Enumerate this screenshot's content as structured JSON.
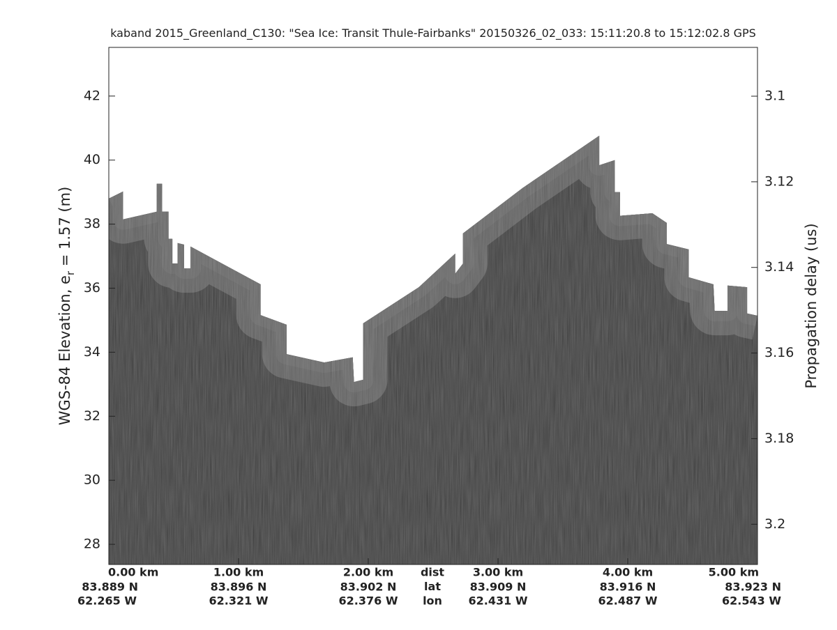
{
  "chart_data": {
    "type": "area",
    "title": "kaband 2015_Greenland_C130: \"Sea Ice: Transit Thule-Fairbanks\"  20150326_02_033: 15:11:20.8 to 15:12:02.8 GPS",
    "y_label": "WGS-84 Elevation, e",
    "y_label_sub": "r",
    "y_label_rest": " = 1.57 (m)",
    "y2_label": "Propagation delay (us)",
    "xlim": [
      0,
      5
    ],
    "ylim": [
      27.37,
      43.52
    ],
    "yticks": [
      28,
      30,
      32,
      34,
      36,
      38,
      40,
      42
    ],
    "y2lim": [
      3.0886,
      3.2094
    ],
    "y2ticks": [
      3.1,
      3.12,
      3.14,
      3.16,
      3.18,
      3.2
    ],
    "xticks": [
      {
        "value": 0,
        "label": "0.00 km"
      },
      {
        "value": 1,
        "label": "1.00 km"
      },
      {
        "value": 2,
        "label": "2.00 km"
      },
      {
        "value": 3,
        "label": "3.00 km"
      },
      {
        "value": 4,
        "label": "4.00 km"
      },
      {
        "value": 5,
        "label": "5.00 km"
      }
    ],
    "lat_labels": [
      "83.889 N",
      "83.896 N",
      "83.902 N",
      "83.909 N",
      "83.916 N",
      "83.923 N"
    ],
    "lon_labels": [
      "62.265 W",
      "62.321 W",
      "62.376 W",
      "62.431 W",
      "62.487 W",
      "62.543 W"
    ],
    "row_labels": [
      "dist",
      "lat",
      "lon"
    ],
    "series": [
      {
        "color": "#3e3e3e",
        "x": [
          0,
          0.11,
          0.11,
          0.37,
          0.37,
          0.41,
          0.41,
          0.46,
          0.46,
          0.49,
          0.49,
          0.53,
          0.53,
          0.58,
          0.58,
          0.63,
          0.63,
          1.17,
          1.17,
          1.37,
          1.37,
          1.66,
          1.88,
          1.89,
          1.96,
          1.96,
          2.39,
          2.67,
          2.67,
          2.73,
          2.73,
          3.19,
          3.78,
          3.78,
          3.9,
          3.9,
          3.94,
          3.94,
          4.19,
          4.3,
          4.3,
          4.47,
          4.47,
          4.66,
          4.67,
          4.77,
          4.77,
          4.92,
          4.92,
          5.0
        ],
        "values": [
          38.8,
          39.02,
          38.15,
          38.39,
          39.26,
          39.26,
          38.39,
          38.39,
          37.54,
          37.54,
          36.77,
          36.77,
          37.41,
          37.36,
          36.62,
          36.62,
          37.3,
          36.12,
          35.16,
          34.86,
          33.94,
          33.68,
          33.84,
          33.07,
          33.14,
          34.9,
          36.03,
          37.08,
          36.45,
          36.77,
          37.71,
          39.13,
          40.76,
          39.84,
          40.0,
          39.0,
          39.0,
          38.26,
          38.34,
          38.04,
          37.38,
          37.21,
          36.34,
          36.12,
          35.29,
          35.29,
          36.08,
          36.03,
          35.21,
          35.14
        ]
      }
    ]
  }
}
